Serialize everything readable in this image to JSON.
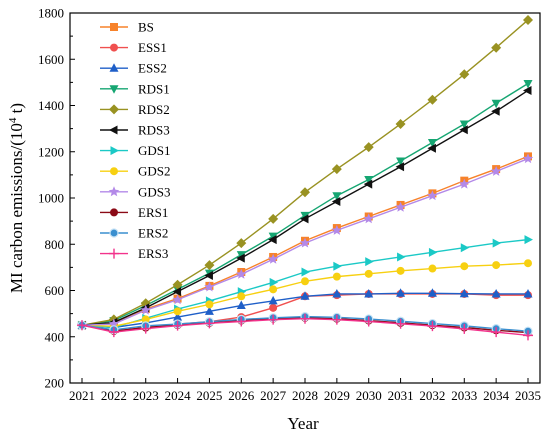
{
  "chart_data": {
    "type": "line",
    "title": "",
    "xlabel": "Year",
    "ylabel_main": "MI carbon emissions/(10",
    "ylabel_sup": "4",
    "ylabel_tail": " t)",
    "x": [
      2021,
      2022,
      2023,
      2024,
      2025,
      2026,
      2027,
      2028,
      2029,
      2030,
      2031,
      2032,
      2033,
      2034,
      2035
    ],
    "x_ticks": [
      "2021",
      "2022",
      "2023",
      "2024",
      "2025",
      "2026",
      "2027",
      "2028",
      "2029",
      "2030",
      "2031",
      "2032",
      "2033",
      "2034",
      "2035"
    ],
    "ylim": [
      200,
      1800
    ],
    "y_ticks": [
      200,
      400,
      600,
      800,
      1000,
      1200,
      1400,
      1600,
      1800
    ],
    "grid": false,
    "legend_position": "top-left",
    "series": [
      {
        "name": "BS",
        "color": "#f7822a",
        "marker": "square",
        "values": [
          450,
          460,
          520,
          565,
          620,
          680,
          745,
          815,
          870,
          920,
          970,
          1020,
          1075,
          1125,
          1180
        ]
      },
      {
        "name": "ESS1",
        "color": "#f0504f",
        "marker": "circle",
        "values": [
          450,
          425,
          440,
          455,
          465,
          485,
          525,
          575,
          580,
          585,
          585,
          585,
          585,
          580,
          580
        ]
      },
      {
        "name": "ESS2",
        "color": "#1f5fc8",
        "marker": "triangle-up",
        "values": [
          450,
          440,
          460,
          485,
          510,
          535,
          555,
          575,
          585,
          585,
          588,
          588,
          586,
          585,
          585
        ]
      },
      {
        "name": "RDS1",
        "color": "#16a672",
        "marker": "triangle-down",
        "values": [
          450,
          470,
          535,
          605,
          675,
          755,
          835,
          925,
          1010,
          1080,
          1160,
          1240,
          1320,
          1410,
          1495
        ]
      },
      {
        "name": "RDS2",
        "color": "#999222",
        "marker": "diamond",
        "values": [
          450,
          475,
          545,
          625,
          710,
          805,
          910,
          1025,
          1125,
          1220,
          1320,
          1425,
          1535,
          1650,
          1770
        ]
      },
      {
        "name": "RDS3",
        "color": "#111111",
        "marker": "triangle-left",
        "values": [
          450,
          462,
          525,
          595,
          665,
          740,
          820,
          910,
          985,
          1060,
          1135,
          1215,
          1295,
          1375,
          1465
        ]
      },
      {
        "name": "GDS1",
        "color": "#1bc9c6",
        "marker": "triangle-right",
        "values": [
          450,
          440,
          480,
          520,
          555,
          595,
          635,
          680,
          705,
          725,
          745,
          765,
          785,
          805,
          820
        ]
      },
      {
        "name": "GDS2",
        "color": "#f7d011",
        "marker": "circle",
        "values": [
          450,
          445,
          475,
          510,
          540,
          575,
          605,
          640,
          660,
          672,
          685,
          695,
          705,
          710,
          718
        ]
      },
      {
        "name": "GDS3",
        "color": "#b389e8",
        "marker": "star",
        "values": [
          450,
          455,
          515,
          560,
          615,
          670,
          735,
          805,
          860,
          910,
          960,
          1010,
          1060,
          1115,
          1170
        ]
      },
      {
        "name": "ERS1",
        "color": "#8b0a16",
        "marker": "circle",
        "values": [
          450,
          425,
          440,
          450,
          460,
          470,
          478,
          482,
          478,
          470,
          460,
          450,
          440,
          428,
          418
        ]
      },
      {
        "name": "ERS2",
        "color": "#3a8fcf",
        "marker": "ringed-circle",
        "values": [
          450,
          430,
          447,
          455,
          465,
          475,
          482,
          487,
          484,
          477,
          467,
          457,
          447,
          435,
          424
        ]
      },
      {
        "name": "ERS3",
        "color": "#f2338c",
        "marker": "plus",
        "values": [
          450,
          420,
          435,
          448,
          458,
          466,
          474,
          478,
          474,
          466,
          456,
          446,
          434,
          420,
          406
        ]
      }
    ]
  }
}
